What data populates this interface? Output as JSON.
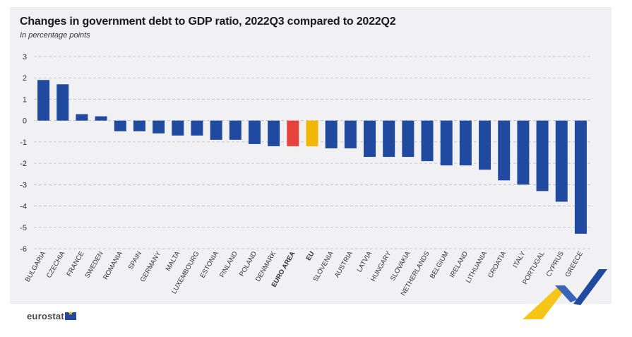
{
  "title": "Changes in government debt to GDP ratio, 2022Q3 compared to 2022Q2",
  "subtitle": "In percentage points",
  "logo_text": "eurostat",
  "colors": {
    "country": "#1f4aa0",
    "euro_area": "#e8423c",
    "eu": "#f2b705",
    "grid": "#bdbdbd",
    "axis_text": "#333333"
  },
  "chart_data": {
    "type": "bar",
    "categories": [
      "BULGARIA",
      "CZECHIA",
      "FRANCE",
      "SWEDEN",
      "ROMANIA",
      "SPAIN",
      "GERMANY",
      "MALTA",
      "LUXEMBOURG",
      "ESTONIA",
      "FINLAND",
      "POLAND",
      "DENMARK",
      "EURO AREA",
      "EU",
      "SLOVENIA",
      "AUSTRIA",
      "LATVIA",
      "HUNGARY",
      "SLOVAKIA",
      "NETHERLANDS",
      "BELGIUM",
      "IRELAND",
      "LITHUANIA",
      "CROATIA",
      "ITALY",
      "PORTUGAL",
      "CYPRUS",
      "GREECE"
    ],
    "values": [
      1.9,
      1.7,
      0.3,
      0.2,
      -0.5,
      -0.5,
      -0.6,
      -0.7,
      -0.7,
      -0.9,
      -0.9,
      -1.1,
      -1.2,
      -1.2,
      -1.2,
      -1.3,
      -1.3,
      -1.7,
      -1.7,
      -1.7,
      -1.9,
      -2.1,
      -2.1,
      -2.3,
      -2.8,
      -3.0,
      -3.3,
      -3.8,
      -5.3
    ],
    "highlight": {
      "EURO AREA": "euro_area",
      "EU": "eu"
    },
    "bold_categories": [
      "EURO AREA",
      "EU"
    ],
    "ylim": [
      -6,
      3
    ],
    "yticks": [
      3,
      2,
      1,
      0,
      -1,
      -2,
      -3,
      -4,
      -5,
      -6
    ],
    "grid": true,
    "legend": false
  }
}
